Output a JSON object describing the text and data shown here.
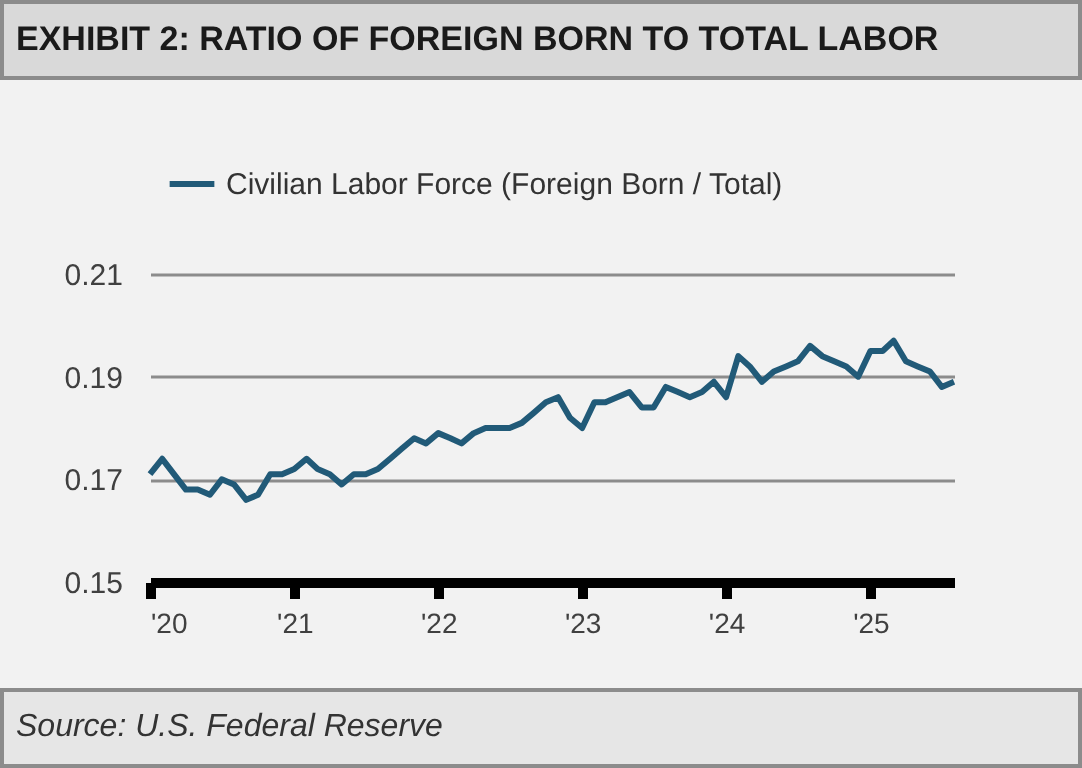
{
  "chart_data": {
    "type": "line",
    "title": "EXHIBIT 2: RATIO OF FOREIGN BORN TO TOTAL LABOR",
    "annotations": [
      "Source: U.S. Federal Reserve"
    ],
    "x": [
      "2020-01",
      "2020-02",
      "2020-04",
      "2020-05",
      "2020-06",
      "2020-07",
      "2020-08",
      "2020-09",
      "2020-10",
      "2020-11",
      "2020-12",
      "2021-01",
      "2021-02",
      "2021-03",
      "2021-04",
      "2021-05",
      "2021-06",
      "2021-07",
      "2021-08",
      "2021-09",
      "2021-10",
      "2021-11",
      "2021-12",
      "2022-01",
      "2022-02",
      "2022-03",
      "2022-04",
      "2022-05",
      "2022-06",
      "2022-07",
      "2022-08",
      "2022-09",
      "2022-10",
      "2022-11",
      "2022-12",
      "2023-01",
      "2023-02",
      "2023-03",
      "2023-05",
      "2023-06",
      "2023-07",
      "2023-08",
      "2023-09",
      "2023-10",
      "2023-11",
      "2023-12",
      "2024-01",
      "2024-02",
      "2024-03",
      "2024-04",
      "2024-05",
      "2024-06",
      "2024-07",
      "2024-08",
      "2024-09",
      "2024-10",
      "2024-11",
      "2024-12",
      "2025-01",
      "2025-02",
      "2025-03",
      "2025-04",
      "2025-05",
      "2025-06",
      "2025-07",
      "2025-08"
    ],
    "series": [
      {
        "name": "Civilian Labor Force (Foreign Born / Total)",
        "color": "#215a78",
        "values": [
          0.171,
          0.174,
          0.168,
          0.168,
          0.167,
          0.17,
          0.169,
          0.166,
          0.167,
          0.171,
          0.171,
          0.172,
          0.174,
          0.172,
          0.171,
          0.169,
          0.171,
          0.171,
          0.172,
          0.174,
          0.176,
          0.178,
          0.177,
          0.179,
          0.178,
          0.177,
          0.179,
          0.18,
          0.18,
          0.18,
          0.181,
          0.183,
          0.185,
          0.186,
          0.182,
          0.18,
          0.185,
          0.185,
          0.187,
          0.184,
          0.184,
          0.188,
          0.187,
          0.186,
          0.187,
          0.189,
          0.186,
          0.194,
          0.192,
          0.189,
          0.191,
          0.192,
          0.193,
          0.196,
          0.194,
          0.193,
          0.192,
          0.19,
          0.195,
          0.195,
          0.197,
          0.193,
          0.192,
          0.191,
          0.188,
          0.189
        ]
      }
    ],
    "xlim": [
      "2020-01",
      "2025-08"
    ],
    "xticks": [
      {
        "value": "2020-01",
        "label": "'20"
      },
      {
        "value": "2021-01",
        "label": "'21"
      },
      {
        "value": "2022-01",
        "label": "'22"
      },
      {
        "value": "2023-01",
        "label": "'23"
      },
      {
        "value": "2024-01",
        "label": "'24"
      },
      {
        "value": "2025-01",
        "label": "'25"
      }
    ],
    "ylim": [
      0.15,
      0.21
    ],
    "yticks": [
      {
        "value": 0.15,
        "label": "0.15"
      },
      {
        "value": 0.17,
        "label": "0.17"
      },
      {
        "value": 0.19,
        "label": "0.19"
      },
      {
        "value": 0.21,
        "label": "0.21"
      }
    ],
    "grid": "y",
    "legend": "top left"
  }
}
